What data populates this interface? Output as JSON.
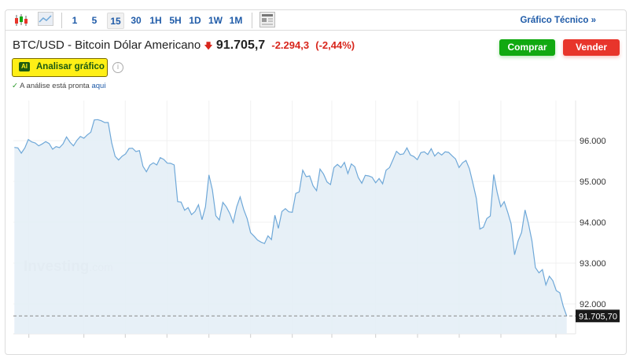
{
  "toolbar": {
    "icons": [
      "candlestick-icon",
      "area-chart-icon",
      "news-icon"
    ],
    "intervals": [
      "1",
      "5",
      "15",
      "30",
      "1H",
      "5H",
      "1D",
      "1W",
      "1M"
    ],
    "active_interval": "15",
    "technical_link": "Gráfico Técnico »"
  },
  "header": {
    "title": "BTC/USD - Bitcoin Dólar Americano",
    "price": "91.705,7",
    "change": "-2.294,3",
    "change_pct": "(-2,44%)",
    "direction": "down",
    "buy_label": "Comprar",
    "sell_label": "Vender"
  },
  "ai": {
    "badge": "AI",
    "label": "Analisar gráfico",
    "status": "A análise está pronta",
    "status_link": "aqui"
  },
  "colors": {
    "line": "#6fa8d8",
    "fill": "#e4eef6",
    "buy": "#11a911",
    "sell": "#e8352b",
    "down": "#d8261c",
    "link": "#1f5ba8",
    "highlight": "#ffef16"
  },
  "chart_data": {
    "type": "area",
    "watermark": "Investing.com",
    "ylim": [
      91300,
      97000
    ],
    "yticks": [
      "96.000",
      "95.000",
      "94.000",
      "93.000",
      "92.000"
    ],
    "ytick_values": [
      96000,
      95000,
      94000,
      93000,
      92000
    ],
    "last_value": 91705.7,
    "last_label": "91.705,70",
    "grid": true,
    "values": [
      95833,
      95821,
      95692,
      95821,
      96025,
      95967,
      95942,
      95871,
      95917,
      95975,
      95929,
      95788,
      95852,
      95827,
      95917,
      96090,
      95962,
      95871,
      96006,
      96102,
      96058,
      96140,
      96206,
      96506,
      96513,
      96487,
      96442,
      96442,
      95948,
      95615,
      95525,
      95615,
      95673,
      95808,
      95813,
      95731,
      95756,
      95371,
      95237,
      95398,
      95456,
      95404,
      95583,
      95538,
      95448,
      95442,
      95404,
      94506,
      94494,
      94294,
      94360,
      94187,
      94263,
      94429,
      94063,
      94379,
      95160,
      94794,
      94160,
      94058,
      94487,
      94379,
      94217,
      93994,
      94379,
      94621,
      94313,
      94090,
      93744,
      93660,
      93563,
      93513,
      93481,
      93667,
      93577,
      94173,
      93852,
      94263,
      94333,
      94256,
      94244,
      94706,
      94744,
      95275,
      95115,
      95135,
      94890,
      94775,
      95302,
      95179,
      94987,
      94923,
      95340,
      95417,
      95340,
      95467,
      95192,
      95429,
      95360,
      95096,
      94956,
      95148,
      95135,
      95102,
      94967,
      95071,
      94942,
      95275,
      95340,
      95533,
      95737,
      95660,
      95673,
      95821,
      95648,
      95610,
      95533,
      95706,
      95725,
      95660,
      95802,
      95621,
      95712,
      95648,
      95725,
      95712,
      95629,
      95552,
      95340,
      95456,
      95513,
      95308,
      94956,
      94583,
      93833,
      93879,
      94090,
      94154,
      95167,
      94731,
      94379,
      94506,
      94250,
      93962,
      93206,
      93544,
      93750,
      94302,
      93962,
      93544,
      92890,
      92763,
      92840,
      92467,
      92679,
      92571,
      92327,
      92275,
      91942,
      91706
    ]
  }
}
